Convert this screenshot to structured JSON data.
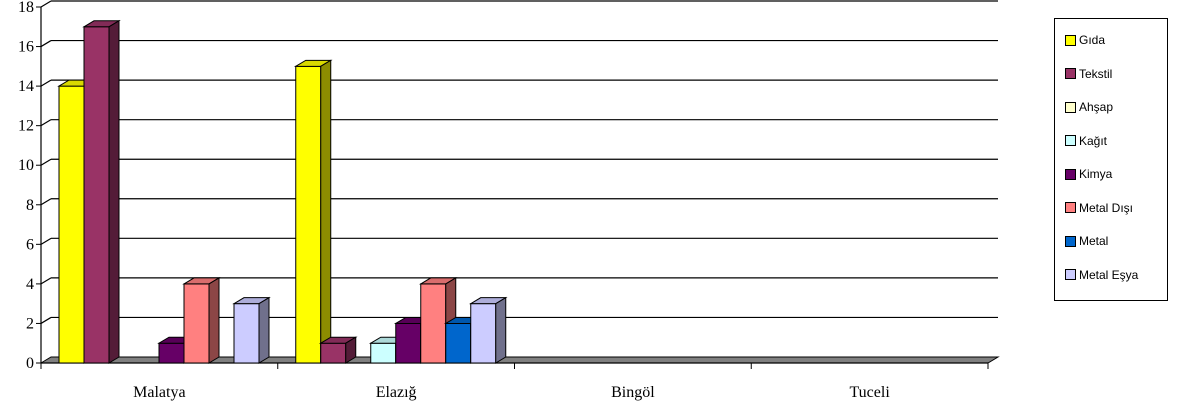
{
  "chart_data": {
    "type": "bar",
    "categories": [
      "Malatya",
      "Elazığ",
      "Bingöl",
      "Tuceli"
    ],
    "series": [
      {
        "name": "Gıda",
        "color": "#FFFF00",
        "values": [
          14,
          15,
          0,
          0
        ]
      },
      {
        "name": "Tekstil",
        "color": "#993366",
        "values": [
          17,
          1,
          0,
          0
        ]
      },
      {
        "name": "Ahşap",
        "color": "#FFFFCC",
        "values": [
          0,
          0,
          0,
          0
        ]
      },
      {
        "name": "Kağıt",
        "color": "#CCFFFF",
        "values": [
          0,
          1,
          0,
          0
        ]
      },
      {
        "name": "Kimya",
        "color": "#660066",
        "values": [
          1,
          2,
          0,
          0
        ]
      },
      {
        "name": "Metal Dışı",
        "color": "#FF8080",
        "values": [
          4,
          4,
          0,
          0
        ]
      },
      {
        "name": "Metal",
        "color": "#0066CC",
        "values": [
          0,
          2,
          0,
          0
        ]
      },
      {
        "name": "Metal Eşya",
        "color": "#CCCCFF",
        "values": [
          3,
          3,
          0,
          0
        ]
      }
    ],
    "ylim": [
      0,
      18
    ],
    "yticks": [
      0,
      2,
      4,
      6,
      8,
      10,
      12,
      14,
      16,
      18
    ],
    "grid": true,
    "legend_position": "right",
    "title": "",
    "xlabel": "",
    "ylabel": ""
  }
}
